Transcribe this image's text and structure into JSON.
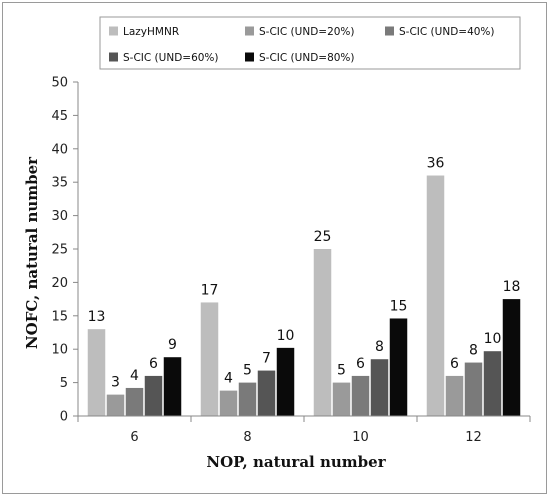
{
  "chart_data": {
    "type": "bar",
    "categories": [
      "6",
      "8",
      "10",
      "12"
    ],
    "series": [
      {
        "name": "LazyHMNR",
        "values": [
          13,
          17,
          25,
          36
        ],
        "labels": [
          "13",
          "17",
          "25",
          "36"
        ],
        "color": "#bdbdbd"
      },
      {
        "name": "S-CIC (UND=20%)",
        "values": [
          3.2,
          3.8,
          5,
          6
        ],
        "labels": [
          "3",
          "4",
          "5",
          "6"
        ],
        "color": "#9a9a9a"
      },
      {
        "name": "S-CIC (UND=40%)",
        "values": [
          4.2,
          5,
          6,
          8
        ],
        "labels": [
          "4",
          "5",
          "6",
          "8"
        ],
        "color": "#7a7a7a"
      },
      {
        "name": "S-CIC (UND=60%)",
        "values": [
          6,
          6.8,
          8.5,
          9.7
        ],
        "labels": [
          "6",
          "7",
          "8",
          "10"
        ],
        "color": "#555555"
      },
      {
        "name": "S-CIC (UND=80%)",
        "values": [
          8.8,
          10.2,
          14.6,
          17.5
        ],
        "labels": [
          "9",
          "10",
          "15",
          "18"
        ],
        "color": "#0a0a0a"
      }
    ],
    "xlabel": "NOP, natural number",
    "ylabel": "NOFC, natural number",
    "ylim": [
      0,
      50
    ],
    "yticks": [
      "0",
      "5",
      "10",
      "15",
      "20",
      "25",
      "30",
      "35",
      "40",
      "45",
      "50"
    ],
    "grid": false,
    "legend_position": "top"
  }
}
